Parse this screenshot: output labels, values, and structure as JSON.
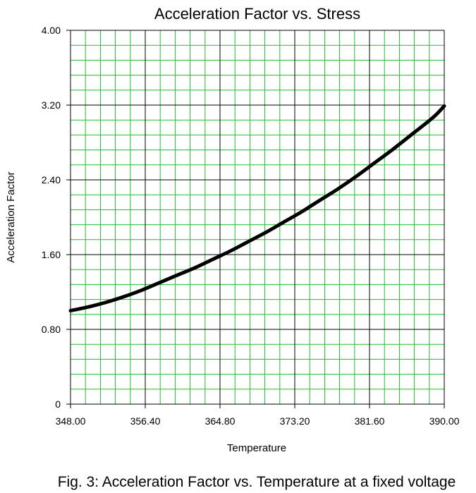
{
  "chart_data": {
    "type": "line",
    "title": "Acceleration Factor vs. Stress",
    "xlabel": "Temperature",
    "ylabel": "Acceleration Factor",
    "caption": "Fig. 3:  Acceleration Factor vs. Temperature at a fixed voltage",
    "xlim": [
      348,
      390
    ],
    "ylim": [
      0,
      4
    ],
    "x_ticks": [
      348,
      356.4,
      364.8,
      373.2,
      381.6,
      390
    ],
    "x_tick_labels": [
      "348.00",
      "356.40",
      "364.80",
      "373.20",
      "381.60",
      "390.00"
    ],
    "y_ticks": [
      0,
      0.8,
      1.6,
      2.4,
      3.2,
      4.0
    ],
    "y_tick_labels": [
      "0",
      "0.80",
      "1.60",
      "2.40",
      "3.20",
      "4.00"
    ],
    "grid": true,
    "minor_grid_divisions": 5,
    "colors": {
      "minor_grid": "#22bb33",
      "major_grid": "#000000",
      "line": "#000000"
    },
    "series": [
      {
        "x": [
          348,
          350,
          352,
          354,
          356,
          358,
          360,
          362,
          364,
          366,
          368,
          370,
          372,
          374,
          376,
          378,
          380,
          382,
          384,
          386,
          388,
          389,
          390
        ],
        "y": [
          1.0,
          1.04,
          1.09,
          1.15,
          1.22,
          1.3,
          1.38,
          1.46,
          1.55,
          1.64,
          1.74,
          1.84,
          1.95,
          2.06,
          2.18,
          2.3,
          2.43,
          2.57,
          2.71,
          2.86,
          3.01,
          3.09,
          3.19
        ]
      }
    ]
  }
}
